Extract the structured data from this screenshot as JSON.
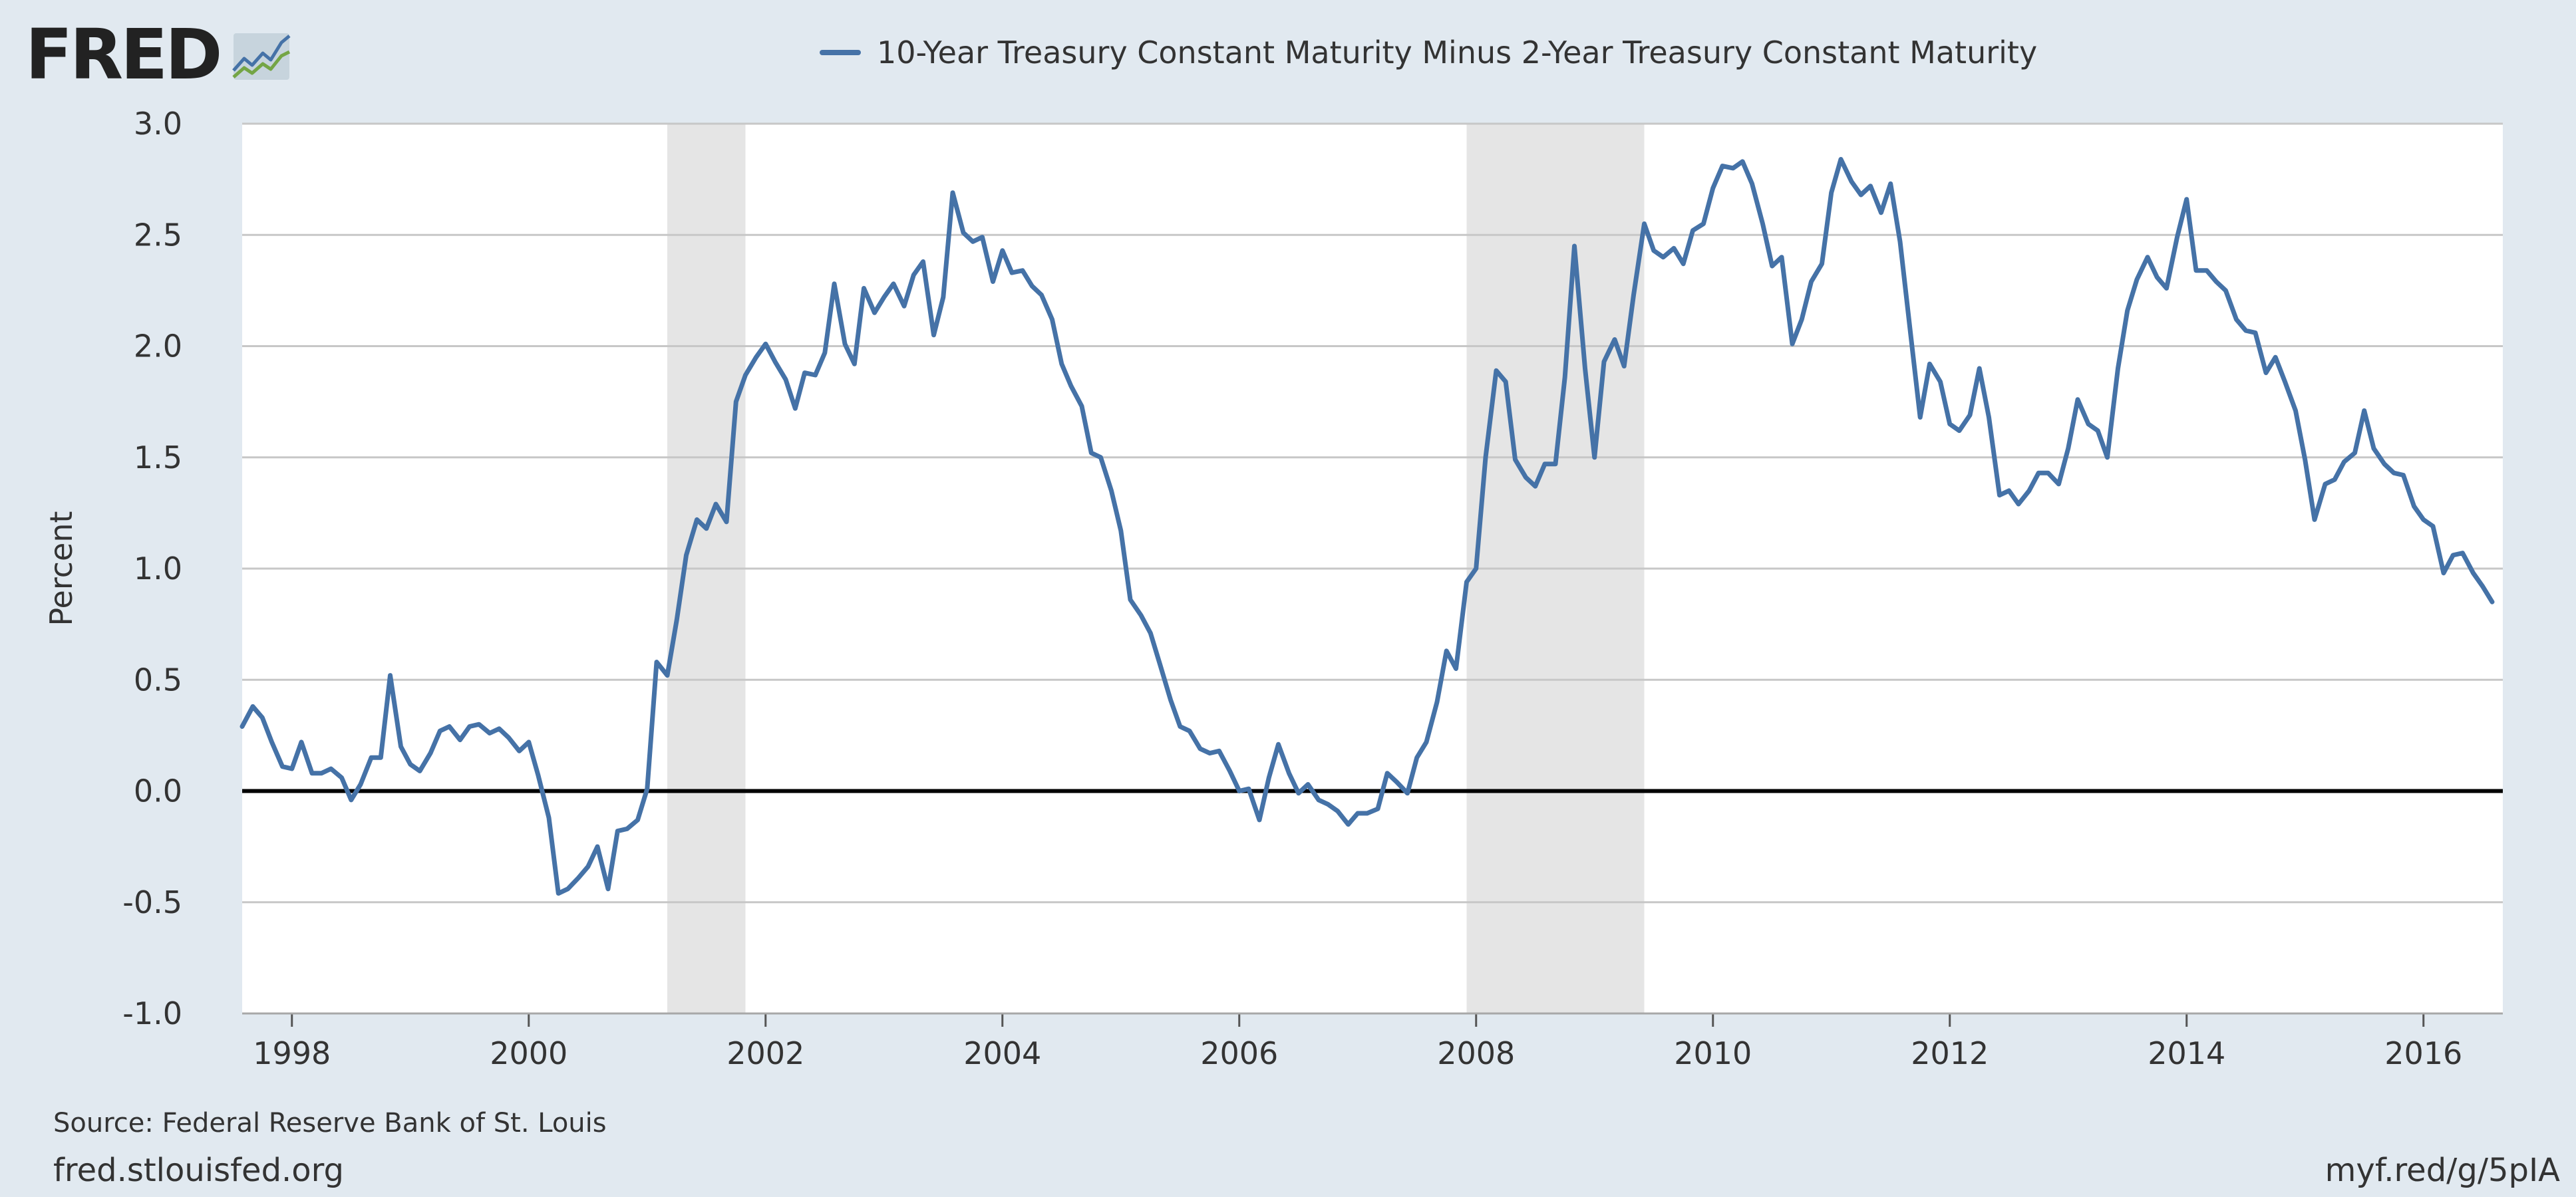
{
  "logo": {
    "text": "FRED"
  },
  "colors": {
    "series": "#4572a7",
    "recession": "#e5e5e5",
    "background": "#e1e9f0",
    "plot": "#ffffff",
    "grid": "#c7c7c7",
    "zero_line": "#000000"
  },
  "footer": {
    "source": "Source: Federal Reserve Bank of St. Louis",
    "site": "fred.stlouisfed.org",
    "shortlink": "myf.red/g/5pIA"
  },
  "chart_data": {
    "type": "line",
    "title": "",
    "xlabel": "",
    "ylabel": "Percent",
    "legend": "top-center",
    "grid": true,
    "xlim": [
      1997.58,
      2016.67
    ],
    "ylim": [
      -1.0,
      3.0
    ],
    "yticks": [
      "-1.0",
      "-0.5",
      "0.0",
      "0.5",
      "1.0",
      "1.5",
      "2.0",
      "2.5",
      "3.0"
    ],
    "xticks": [
      "1998",
      "2000",
      "2002",
      "2004",
      "2006",
      "2008",
      "2010",
      "2012",
      "2014",
      "2016"
    ],
    "recessions": [
      [
        2001.17,
        2001.83
      ],
      [
        2007.92,
        2009.42
      ]
    ],
    "series": [
      {
        "name": "10-Year Treasury Constant Maturity Minus 2-Year Treasury Constant Maturity",
        "points": [
          [
            1997.58,
            0.29
          ],
          [
            1997.67,
            0.38
          ],
          [
            1997.75,
            0.33
          ],
          [
            1997.83,
            0.22
          ],
          [
            1997.92,
            0.11
          ],
          [
            1998.0,
            0.1
          ],
          [
            1998.08,
            0.22
          ],
          [
            1998.17,
            0.08
          ],
          [
            1998.25,
            0.08
          ],
          [
            1998.33,
            0.1
          ],
          [
            1998.42,
            0.06
          ],
          [
            1998.5,
            -0.04
          ],
          [
            1998.58,
            0.03
          ],
          [
            1998.67,
            0.15
          ],
          [
            1998.75,
            0.15
          ],
          [
            1998.83,
            0.52
          ],
          [
            1998.92,
            0.2
          ],
          [
            1999.0,
            0.12
          ],
          [
            1999.08,
            0.09
          ],
          [
            1999.17,
            0.17
          ],
          [
            1999.25,
            0.27
          ],
          [
            1999.33,
            0.29
          ],
          [
            1999.42,
            0.23
          ],
          [
            1999.5,
            0.29
          ],
          [
            1999.58,
            0.3
          ],
          [
            1999.67,
            0.26
          ],
          [
            1999.75,
            0.28
          ],
          [
            1999.83,
            0.24
          ],
          [
            1999.92,
            0.18
          ],
          [
            2000.0,
            0.22
          ],
          [
            2000.08,
            0.07
          ],
          [
            2000.17,
            -0.12
          ],
          [
            2000.25,
            -0.46
          ],
          [
            2000.33,
            -0.44
          ],
          [
            2000.42,
            -0.39
          ],
          [
            2000.5,
            -0.34
          ],
          [
            2000.58,
            -0.25
          ],
          [
            2000.67,
            -0.44
          ],
          [
            2000.75,
            -0.18
          ],
          [
            2000.83,
            -0.17
          ],
          [
            2000.92,
            -0.13
          ],
          [
            2001.0,
            0.01
          ],
          [
            2001.08,
            0.58
          ],
          [
            2001.17,
            0.52
          ],
          [
            2001.25,
            0.77
          ],
          [
            2001.33,
            1.06
          ],
          [
            2001.42,
            1.22
          ],
          [
            2001.5,
            1.18
          ],
          [
            2001.58,
            1.29
          ],
          [
            2001.67,
            1.21
          ],
          [
            2001.75,
            1.75
          ],
          [
            2001.83,
            1.87
          ],
          [
            2001.92,
            1.95
          ],
          [
            2002.0,
            2.01
          ],
          [
            2002.08,
            1.93
          ],
          [
            2002.17,
            1.85
          ],
          [
            2002.25,
            1.72
          ],
          [
            2002.33,
            1.88
          ],
          [
            2002.42,
            1.87
          ],
          [
            2002.5,
            1.97
          ],
          [
            2002.58,
            2.28
          ],
          [
            2002.67,
            2.01
          ],
          [
            2002.75,
            1.92
          ],
          [
            2002.83,
            2.26
          ],
          [
            2002.92,
            2.15
          ],
          [
            2003.0,
            2.22
          ],
          [
            2003.08,
            2.28
          ],
          [
            2003.17,
            2.18
          ],
          [
            2003.25,
            2.32
          ],
          [
            2003.33,
            2.38
          ],
          [
            2003.42,
            2.05
          ],
          [
            2003.5,
            2.22
          ],
          [
            2003.58,
            2.69
          ],
          [
            2003.67,
            2.51
          ],
          [
            2003.75,
            2.47
          ],
          [
            2003.83,
            2.49
          ],
          [
            2003.92,
            2.29
          ],
          [
            2004.0,
            2.43
          ],
          [
            2004.08,
            2.33
          ],
          [
            2004.17,
            2.34
          ],
          [
            2004.25,
            2.27
          ],
          [
            2004.33,
            2.23
          ],
          [
            2004.42,
            2.12
          ],
          [
            2004.5,
            1.92
          ],
          [
            2004.58,
            1.82
          ],
          [
            2004.67,
            1.73
          ],
          [
            2004.75,
            1.52
          ],
          [
            2004.83,
            1.5
          ],
          [
            2004.92,
            1.35
          ],
          [
            2005.0,
            1.17
          ],
          [
            2005.08,
            0.86
          ],
          [
            2005.17,
            0.79
          ],
          [
            2005.25,
            0.71
          ],
          [
            2005.33,
            0.57
          ],
          [
            2005.42,
            0.41
          ],
          [
            2005.5,
            0.29
          ],
          [
            2005.58,
            0.27
          ],
          [
            2005.67,
            0.19
          ],
          [
            2005.75,
            0.17
          ],
          [
            2005.83,
            0.18
          ],
          [
            2005.92,
            0.09
          ],
          [
            2006.0,
            0.0
          ],
          [
            2006.08,
            0.01
          ],
          [
            2006.17,
            -0.13
          ],
          [
            2006.25,
            0.06
          ],
          [
            2006.33,
            0.21
          ],
          [
            2006.42,
            0.08
          ],
          [
            2006.5,
            -0.01
          ],
          [
            2006.58,
            0.03
          ],
          [
            2006.67,
            -0.04
          ],
          [
            2006.75,
            -0.06
          ],
          [
            2006.83,
            -0.09
          ],
          [
            2006.92,
            -0.15
          ],
          [
            2007.0,
            -0.1
          ],
          [
            2007.08,
            -0.1
          ],
          [
            2007.17,
            -0.08
          ],
          [
            2007.25,
            0.08
          ],
          [
            2007.33,
            0.04
          ],
          [
            2007.42,
            -0.01
          ],
          [
            2007.5,
            0.15
          ],
          [
            2007.58,
            0.22
          ],
          [
            2007.67,
            0.4
          ],
          [
            2007.75,
            0.63
          ],
          [
            2007.83,
            0.55
          ],
          [
            2007.92,
            0.94
          ],
          [
            2008.0,
            1.0
          ],
          [
            2008.08,
            1.5
          ],
          [
            2008.17,
            1.89
          ],
          [
            2008.25,
            1.84
          ],
          [
            2008.33,
            1.49
          ],
          [
            2008.42,
            1.41
          ],
          [
            2008.5,
            1.37
          ],
          [
            2008.58,
            1.47
          ],
          [
            2008.67,
            1.47
          ],
          [
            2008.75,
            1.86
          ],
          [
            2008.83,
            2.45
          ],
          [
            2008.92,
            1.9
          ],
          [
            2009.0,
            1.5
          ],
          [
            2009.08,
            1.93
          ],
          [
            2009.17,
            2.03
          ],
          [
            2009.25,
            1.91
          ],
          [
            2009.33,
            2.23
          ],
          [
            2009.42,
            2.55
          ],
          [
            2009.5,
            2.43
          ],
          [
            2009.58,
            2.4
          ],
          [
            2009.67,
            2.44
          ],
          [
            2009.75,
            2.37
          ],
          [
            2009.83,
            2.52
          ],
          [
            2009.92,
            2.55
          ],
          [
            2010.0,
            2.71
          ],
          [
            2010.08,
            2.81
          ],
          [
            2010.17,
            2.8
          ],
          [
            2010.25,
            2.83
          ],
          [
            2010.33,
            2.73
          ],
          [
            2010.42,
            2.55
          ],
          [
            2010.5,
            2.36
          ],
          [
            2010.58,
            2.4
          ],
          [
            2010.67,
            2.01
          ],
          [
            2010.75,
            2.12
          ],
          [
            2010.83,
            2.29
          ],
          [
            2010.92,
            2.37
          ],
          [
            2011.0,
            2.69
          ],
          [
            2011.08,
            2.84
          ],
          [
            2011.17,
            2.74
          ],
          [
            2011.25,
            2.68
          ],
          [
            2011.33,
            2.72
          ],
          [
            2011.42,
            2.6
          ],
          [
            2011.5,
            2.73
          ],
          [
            2011.58,
            2.47
          ],
          [
            2011.67,
            2.05
          ],
          [
            2011.75,
            1.68
          ],
          [
            2011.83,
            1.92
          ],
          [
            2011.92,
            1.84
          ],
          [
            2012.0,
            1.65
          ],
          [
            2012.08,
            1.62
          ],
          [
            2012.17,
            1.69
          ],
          [
            2012.25,
            1.9
          ],
          [
            2012.33,
            1.68
          ],
          [
            2012.42,
            1.33
          ],
          [
            2012.5,
            1.35
          ],
          [
            2012.58,
            1.29
          ],
          [
            2012.67,
            1.35
          ],
          [
            2012.75,
            1.43
          ],
          [
            2012.83,
            1.43
          ],
          [
            2012.92,
            1.38
          ],
          [
            2013.0,
            1.54
          ],
          [
            2013.08,
            1.76
          ],
          [
            2013.17,
            1.65
          ],
          [
            2013.25,
            1.62
          ],
          [
            2013.33,
            1.5
          ],
          [
            2013.42,
            1.9
          ],
          [
            2013.5,
            2.16
          ],
          [
            2013.58,
            2.3
          ],
          [
            2013.67,
            2.4
          ],
          [
            2013.75,
            2.31
          ],
          [
            2013.83,
            2.26
          ],
          [
            2013.92,
            2.49
          ],
          [
            2014.0,
            2.66
          ],
          [
            2014.08,
            2.34
          ],
          [
            2014.17,
            2.34
          ],
          [
            2014.25,
            2.29
          ],
          [
            2014.33,
            2.25
          ],
          [
            2014.42,
            2.12
          ],
          [
            2014.5,
            2.07
          ],
          [
            2014.58,
            2.06
          ],
          [
            2014.67,
            1.88
          ],
          [
            2014.75,
            1.95
          ],
          [
            2014.83,
            1.84
          ],
          [
            2014.92,
            1.71
          ],
          [
            2015.0,
            1.49
          ],
          [
            2015.08,
            1.22
          ],
          [
            2015.17,
            1.38
          ],
          [
            2015.25,
            1.4
          ],
          [
            2015.33,
            1.48
          ],
          [
            2015.42,
            1.52
          ],
          [
            2015.5,
            1.71
          ],
          [
            2015.58,
            1.54
          ],
          [
            2015.67,
            1.47
          ],
          [
            2015.75,
            1.43
          ],
          [
            2015.83,
            1.42
          ],
          [
            2015.92,
            1.28
          ],
          [
            2016.0,
            1.22
          ],
          [
            2016.08,
            1.19
          ],
          [
            2016.17,
            0.98
          ],
          [
            2016.25,
            1.06
          ],
          [
            2016.33,
            1.07
          ],
          [
            2016.42,
            0.98
          ],
          [
            2016.5,
            0.92
          ],
          [
            2016.58,
            0.85
          ]
        ]
      }
    ]
  }
}
